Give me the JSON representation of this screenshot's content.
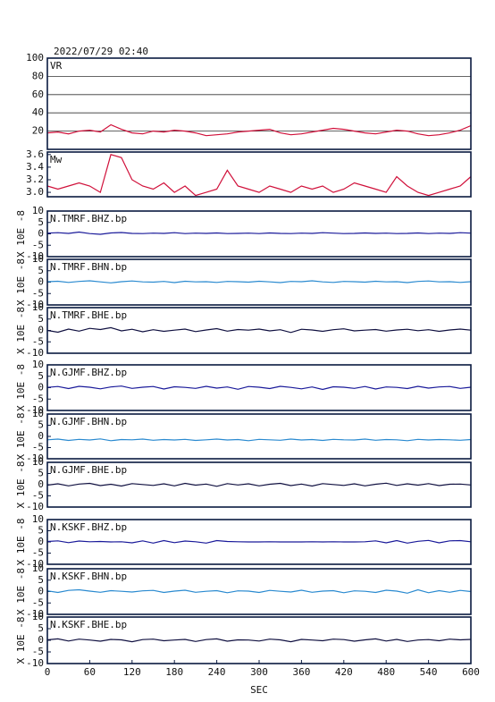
{
  "chart_data": [
    {
      "type": "line",
      "title": "2022/07/29 02:40",
      "x": [
        0,
        15,
        30,
        45,
        60,
        75,
        90,
        105,
        120,
        135,
        150,
        165,
        180,
        195,
        210,
        225,
        240,
        255,
        270,
        285,
        300,
        315,
        330,
        345,
        360,
        375,
        390,
        405,
        420,
        435,
        450,
        465,
        480,
        495,
        510,
        525,
        540,
        555,
        570,
        585,
        600
      ],
      "xlim": [
        0,
        600
      ],
      "ylim": [
        0,
        100
      ],
      "yticks": [
        20,
        40,
        60,
        80,
        100
      ],
      "grid": true,
      "series": [
        {
          "name": "VR",
          "color": "#d0103a",
          "values": [
            18,
            19,
            17,
            20,
            21,
            19,
            27,
            22,
            18,
            17,
            20,
            19,
            21,
            20,
            18,
            15,
            16,
            17,
            19,
            20,
            21,
            22,
            18,
            16,
            17,
            19,
            21,
            23,
            22,
            20,
            18,
            17,
            19,
            21,
            20,
            17,
            15,
            16,
            18,
            21,
            26
          ]
        }
      ]
    },
    {
      "type": "line",
      "x": [
        0,
        15,
        30,
        45,
        60,
        75,
        90,
        105,
        120,
        135,
        150,
        165,
        180,
        195,
        210,
        225,
        240,
        255,
        270,
        285,
        300,
        315,
        330,
        345,
        360,
        375,
        390,
        405,
        420,
        435,
        450,
        465,
        480,
        495,
        510,
        525,
        540,
        555,
        570,
        585,
        600
      ],
      "xlim": [
        0,
        600
      ],
      "ylim": [
        2.93,
        3.64
      ],
      "yticks": [
        {
          "value": 3,
          "label": "3.0"
        },
        {
          "value": 3.2,
          "label": "3.2"
        },
        {
          "value": 3.4,
          "label": "3.4"
        },
        {
          "value": 3.6,
          "label": "3.6"
        }
      ],
      "series": [
        {
          "name": "Mw",
          "color": "#d0103a",
          "values": [
            3.1,
            3.05,
            3.1,
            3.15,
            3.1,
            3.0,
            3.6,
            3.55,
            3.2,
            3.1,
            3.05,
            3.15,
            3.0,
            3.1,
            2.95,
            3.0,
            3.05,
            3.35,
            3.1,
            3.05,
            3.0,
            3.1,
            3.05,
            3.0,
            3.1,
            3.05,
            3.1,
            3.0,
            3.05,
            3.15,
            3.1,
            3.05,
            3.0,
            3.25,
            3.1,
            3.0,
            2.95,
            3.0,
            3.05,
            3.1,
            3.25
          ]
        }
      ]
    },
    {
      "type": "line",
      "ylabel": "X 10E -8",
      "x": [
        0,
        15,
        30,
        45,
        60,
        75,
        90,
        105,
        120,
        135,
        150,
        165,
        180,
        195,
        210,
        225,
        240,
        255,
        270,
        285,
        300,
        315,
        330,
        345,
        360,
        375,
        390,
        405,
        420,
        435,
        450,
        465,
        480,
        495,
        510,
        525,
        540,
        555,
        570,
        585,
        600
      ],
      "xlim": [
        0,
        600
      ],
      "ylim": [
        -10,
        10
      ],
      "yticks": [
        -10,
        -5,
        0,
        5,
        10
      ],
      "series": [
        {
          "name": "N.TMRF.BHZ.bp",
          "color": "#1a1a9a",
          "values": [
            0.3,
            0.5,
            0.2,
            0.8,
            0.1,
            -0.2,
            0.4,
            0.6,
            0.2,
            0.1,
            0.3,
            0.2,
            0.5,
            0.1,
            0.3,
            0.2,
            0.4,
            0.1,
            0.2,
            0.3,
            0.1,
            0.4,
            0.2,
            0.1,
            0.3,
            0.2,
            0.5,
            0.3,
            0.1,
            0.2,
            0.4,
            0.2,
            0.3,
            0.1,
            0.2,
            0.4,
            0.1,
            0.3,
            0.2,
            0.5,
            0.3
          ]
        }
      ]
    },
    {
      "type": "line",
      "ylabel": "X 10E -8",
      "x": [
        0,
        15,
        30,
        45,
        60,
        75,
        90,
        105,
        120,
        135,
        150,
        165,
        180,
        195,
        210,
        225,
        240,
        255,
        270,
        285,
        300,
        315,
        330,
        345,
        360,
        375,
        390,
        405,
        420,
        435,
        450,
        465,
        480,
        495,
        510,
        525,
        540,
        555,
        570,
        585,
        600
      ],
      "xlim": [
        0,
        600
      ],
      "ylim": [
        -10,
        10
      ],
      "yticks": [
        -10,
        -5,
        0,
        5,
        10
      ],
      "series": [
        {
          "name": "N.TMRF.BHN.bp",
          "color": "#2a8ad0",
          "values": [
            0.2,
            0.4,
            -0.1,
            0.3,
            0.6,
            0.1,
            -0.3,
            0.2,
            0.5,
            0.1,
            0.0,
            0.3,
            -0.2,
            0.4,
            0.1,
            0.2,
            -0.1,
            0.3,
            0.2,
            0.0,
            0.4,
            0.1,
            -0.2,
            0.3,
            0.2,
            0.6,
            0.1,
            -0.1,
            0.3,
            0.2,
            0.0,
            0.4,
            0.1,
            0.2,
            -0.2,
            0.3,
            0.5,
            0.1,
            0.2,
            -0.1,
            0.2
          ]
        }
      ]
    },
    {
      "type": "line",
      "ylabel": "X 10E -8",
      "x": [
        0,
        15,
        30,
        45,
        60,
        75,
        90,
        105,
        120,
        135,
        150,
        165,
        180,
        195,
        210,
        225,
        240,
        255,
        270,
        285,
        300,
        315,
        330,
        345,
        360,
        375,
        390,
        405,
        420,
        435,
        450,
        465,
        480,
        495,
        510,
        525,
        540,
        555,
        570,
        585,
        600
      ],
      "xlim": [
        0,
        600
      ],
      "ylim": [
        -10,
        10
      ],
      "yticks": [
        -10,
        -5,
        0,
        5,
        10
      ],
      "series": [
        {
          "name": "N.TMRF.BHE.bp",
          "color": "#101040",
          "values": [
            0.0,
            -0.8,
            0.6,
            -0.3,
            0.9,
            0.4,
            1.2,
            -0.2,
            0.5,
            -0.6,
            0.3,
            -0.4,
            0.1,
            0.6,
            -0.5,
            0.2,
            0.8,
            -0.3,
            0.4,
            0.1,
            0.6,
            -0.2,
            0.3,
            -0.9,
            0.5,
            0.2,
            -0.4,
            0.3,
            0.7,
            -0.2,
            0.1,
            0.4,
            -0.3,
            0.2,
            0.5,
            -0.1,
            0.3,
            -0.4,
            0.2,
            0.6,
            0.1
          ]
        }
      ]
    },
    {
      "type": "line",
      "ylabel": "X 10E -8",
      "x": [
        0,
        15,
        30,
        45,
        60,
        75,
        90,
        105,
        120,
        135,
        150,
        165,
        180,
        195,
        210,
        225,
        240,
        255,
        270,
        285,
        300,
        315,
        330,
        345,
        360,
        375,
        390,
        405,
        420,
        435,
        450,
        465,
        480,
        495,
        510,
        525,
        540,
        555,
        570,
        585,
        600
      ],
      "xlim": [
        0,
        600
      ],
      "ylim": [
        -10,
        10
      ],
      "yticks": [
        -10,
        -5,
        0,
        5,
        10
      ],
      "series": [
        {
          "name": "N.GJMF.BHZ.bp",
          "color": "#1a1a9a",
          "values": [
            0.1,
            0.5,
            -0.4,
            0.6,
            0.2,
            -0.5,
            0.3,
            0.7,
            -0.3,
            0.2,
            0.5,
            -0.6,
            0.4,
            0.1,
            -0.3,
            0.6,
            -0.2,
            0.3,
            -0.7,
            0.5,
            0.2,
            -0.4,
            0.6,
            0.1,
            -0.5,
            0.3,
            -0.8,
            0.4,
            0.2,
            -0.3,
            0.5,
            -0.6,
            0.3,
            0.1,
            -0.4,
            0.6,
            -0.2,
            0.3,
            0.5,
            -0.3,
            0.2
          ]
        }
      ]
    },
    {
      "type": "line",
      "ylabel": "X 10E -8",
      "x": [
        0,
        15,
        30,
        45,
        60,
        75,
        90,
        105,
        120,
        135,
        150,
        165,
        180,
        195,
        210,
        225,
        240,
        255,
        270,
        285,
        300,
        315,
        330,
        345,
        360,
        375,
        390,
        405,
        420,
        435,
        450,
        465,
        480,
        495,
        510,
        525,
        540,
        555,
        570,
        585,
        600
      ],
      "xlim": [
        0,
        600
      ],
      "ylim": [
        -10,
        10
      ],
      "yticks": [
        -10,
        -5,
        0,
        5,
        10
      ],
      "series": [
        {
          "name": "N.GJMF.BHN.bp",
          "color": "#2a8ad0",
          "values": [
            -1.5,
            -1.2,
            -1.8,
            -1.3,
            -1.6,
            -1.1,
            -1.9,
            -1.4,
            -1.5,
            -1.2,
            -1.7,
            -1.4,
            -1.6,
            -1.3,
            -1.8,
            -1.5,
            -1.2,
            -1.6,
            -1.4,
            -1.9,
            -1.3,
            -1.5,
            -1.7,
            -1.2,
            -1.6,
            -1.4,
            -1.8,
            -1.3,
            -1.5,
            -1.6,
            -1.2,
            -1.7,
            -1.4,
            -1.5,
            -1.9,
            -1.3,
            -1.6,
            -1.4,
            -1.5,
            -1.7,
            -1.4
          ]
        }
      ]
    },
    {
      "type": "line",
      "ylabel": "X 10E -8",
      "x": [
        0,
        15,
        30,
        45,
        60,
        75,
        90,
        105,
        120,
        135,
        150,
        165,
        180,
        195,
        210,
        225,
        240,
        255,
        270,
        285,
        300,
        315,
        330,
        345,
        360,
        375,
        390,
        405,
        420,
        435,
        450,
        465,
        480,
        495,
        510,
        525,
        540,
        555,
        570,
        585,
        600
      ],
      "xlim": [
        0,
        600
      ],
      "ylim": [
        -10,
        10
      ],
      "yticks": [
        -10,
        -5,
        0,
        5,
        10
      ],
      "series": [
        {
          "name": "N.GJMF.BHE.bp",
          "color": "#101040",
          "values": [
            -0.2,
            0.4,
            -0.5,
            0.3,
            0.6,
            -0.4,
            0.2,
            -0.6,
            0.5,
            0.1,
            -0.3,
            0.4,
            -0.5,
            0.6,
            -0.2,
            0.3,
            -0.7,
            0.5,
            -0.1,
            0.4,
            -0.5,
            0.2,
            0.6,
            -0.4,
            0.3,
            -0.6,
            0.5,
            0.1,
            -0.3,
            0.4,
            -0.5,
            0.2,
            0.7,
            -0.3,
            0.4,
            -0.2,
            0.5,
            -0.4,
            0.2,
            0.3,
            -0.1
          ]
        }
      ]
    },
    {
      "type": "line",
      "ylabel": "X 10E -8",
      "x": [
        0,
        15,
        30,
        45,
        60,
        75,
        90,
        105,
        120,
        135,
        150,
        165,
        180,
        195,
        210,
        225,
        240,
        255,
        270,
        285,
        300,
        315,
        330,
        345,
        360,
        375,
        390,
        405,
        420,
        435,
        450,
        465,
        480,
        495,
        510,
        525,
        540,
        555,
        570,
        585,
        600
      ],
      "xlim": [
        0,
        600
      ],
      "ylim": [
        -10,
        10
      ],
      "yticks": [
        -10,
        -5,
        0,
        5,
        10
      ],
      "series": [
        {
          "name": "N.KSKF.BHZ.bp",
          "color": "#1a1a9a",
          "values": [
            0.2,
            0.5,
            -0.3,
            0.4,
            0.1,
            0.2,
            0.0,
            0.1,
            -0.4,
            0.5,
            -0.5,
            0.6,
            -0.3,
            0.4,
            0.1,
            -0.5,
            0.6,
            0.2,
            0.1,
            0.0,
            0.0,
            0.1,
            0.0,
            0.0,
            0.0,
            0.1,
            0.0,
            0.1,
            0.0,
            0.0,
            0.1,
            0.5,
            -0.4,
            0.6,
            -0.5,
            0.3,
            0.7,
            -0.4,
            0.5,
            0.6,
            0.1
          ]
        }
      ]
    },
    {
      "type": "line",
      "ylabel": "X 10E -8",
      "x": [
        0,
        15,
        30,
        45,
        60,
        75,
        90,
        105,
        120,
        135,
        150,
        165,
        180,
        195,
        210,
        225,
        240,
        255,
        270,
        285,
        300,
        315,
        330,
        345,
        360,
        375,
        390,
        405,
        420,
        435,
        450,
        465,
        480,
        495,
        510,
        525,
        540,
        555,
        570,
        585,
        600
      ],
      "xlim": [
        0,
        600
      ],
      "ylim": [
        -10,
        10
      ],
      "yticks": [
        -10,
        -5,
        0,
        5,
        10
      ],
      "series": [
        {
          "name": "N.KSKF.BHN.bp",
          "color": "#2a8ad0",
          "values": [
            0.3,
            -0.4,
            0.5,
            0.8,
            0.2,
            -0.3,
            0.4,
            0.1,
            -0.2,
            0.3,
            0.5,
            -0.4,
            0.2,
            0.6,
            -0.3,
            0.1,
            0.4,
            -0.5,
            0.3,
            0.2,
            -0.4,
            0.5,
            0.1,
            -0.2,
            0.6,
            -0.3,
            0.2,
            0.4,
            -0.5,
            0.3,
            0.1,
            -0.4,
            0.6,
            0.2,
            -0.7,
            0.8,
            -0.5,
            0.4,
            -0.3,
            0.5,
            0.0
          ]
        }
      ]
    },
    {
      "type": "line",
      "ylabel": "X 10E -8",
      "xlabel": "SEC",
      "x": [
        0,
        15,
        30,
        45,
        60,
        75,
        90,
        105,
        120,
        135,
        150,
        165,
        180,
        195,
        210,
        225,
        240,
        255,
        270,
        285,
        300,
        315,
        330,
        345,
        360,
        375,
        390,
        405,
        420,
        435,
        450,
        465,
        480,
        495,
        510,
        525,
        540,
        555,
        570,
        585,
        600
      ],
      "xlim": [
        0,
        600
      ],
      "xticks": [
        0,
        60,
        120,
        180,
        240,
        300,
        360,
        420,
        480,
        540,
        600
      ],
      "ylim": [
        -10,
        10
      ],
      "yticks": [
        -10,
        -5,
        0,
        5,
        10
      ],
      "series": [
        {
          "name": "N.KSKF.BHE.bp",
          "color": "#101040",
          "values": [
            0.2,
            0.6,
            -0.3,
            0.5,
            0.1,
            -0.4,
            0.4,
            0.2,
            -0.6,
            0.3,
            0.5,
            -0.2,
            0.1,
            0.4,
            -0.5,
            0.3,
            0.6,
            -0.4,
            0.2,
            0.1,
            -0.3,
            0.5,
            0.2,
            -0.6,
            0.4,
            0.1,
            -0.2,
            0.5,
            0.3,
            -0.4,
            0.2,
            0.6,
            -0.3,
            0.4,
            -0.5,
            0.1,
            0.3,
            -0.2,
            0.5,
            0.2,
            0.4
          ]
        }
      ]
    }
  ]
}
